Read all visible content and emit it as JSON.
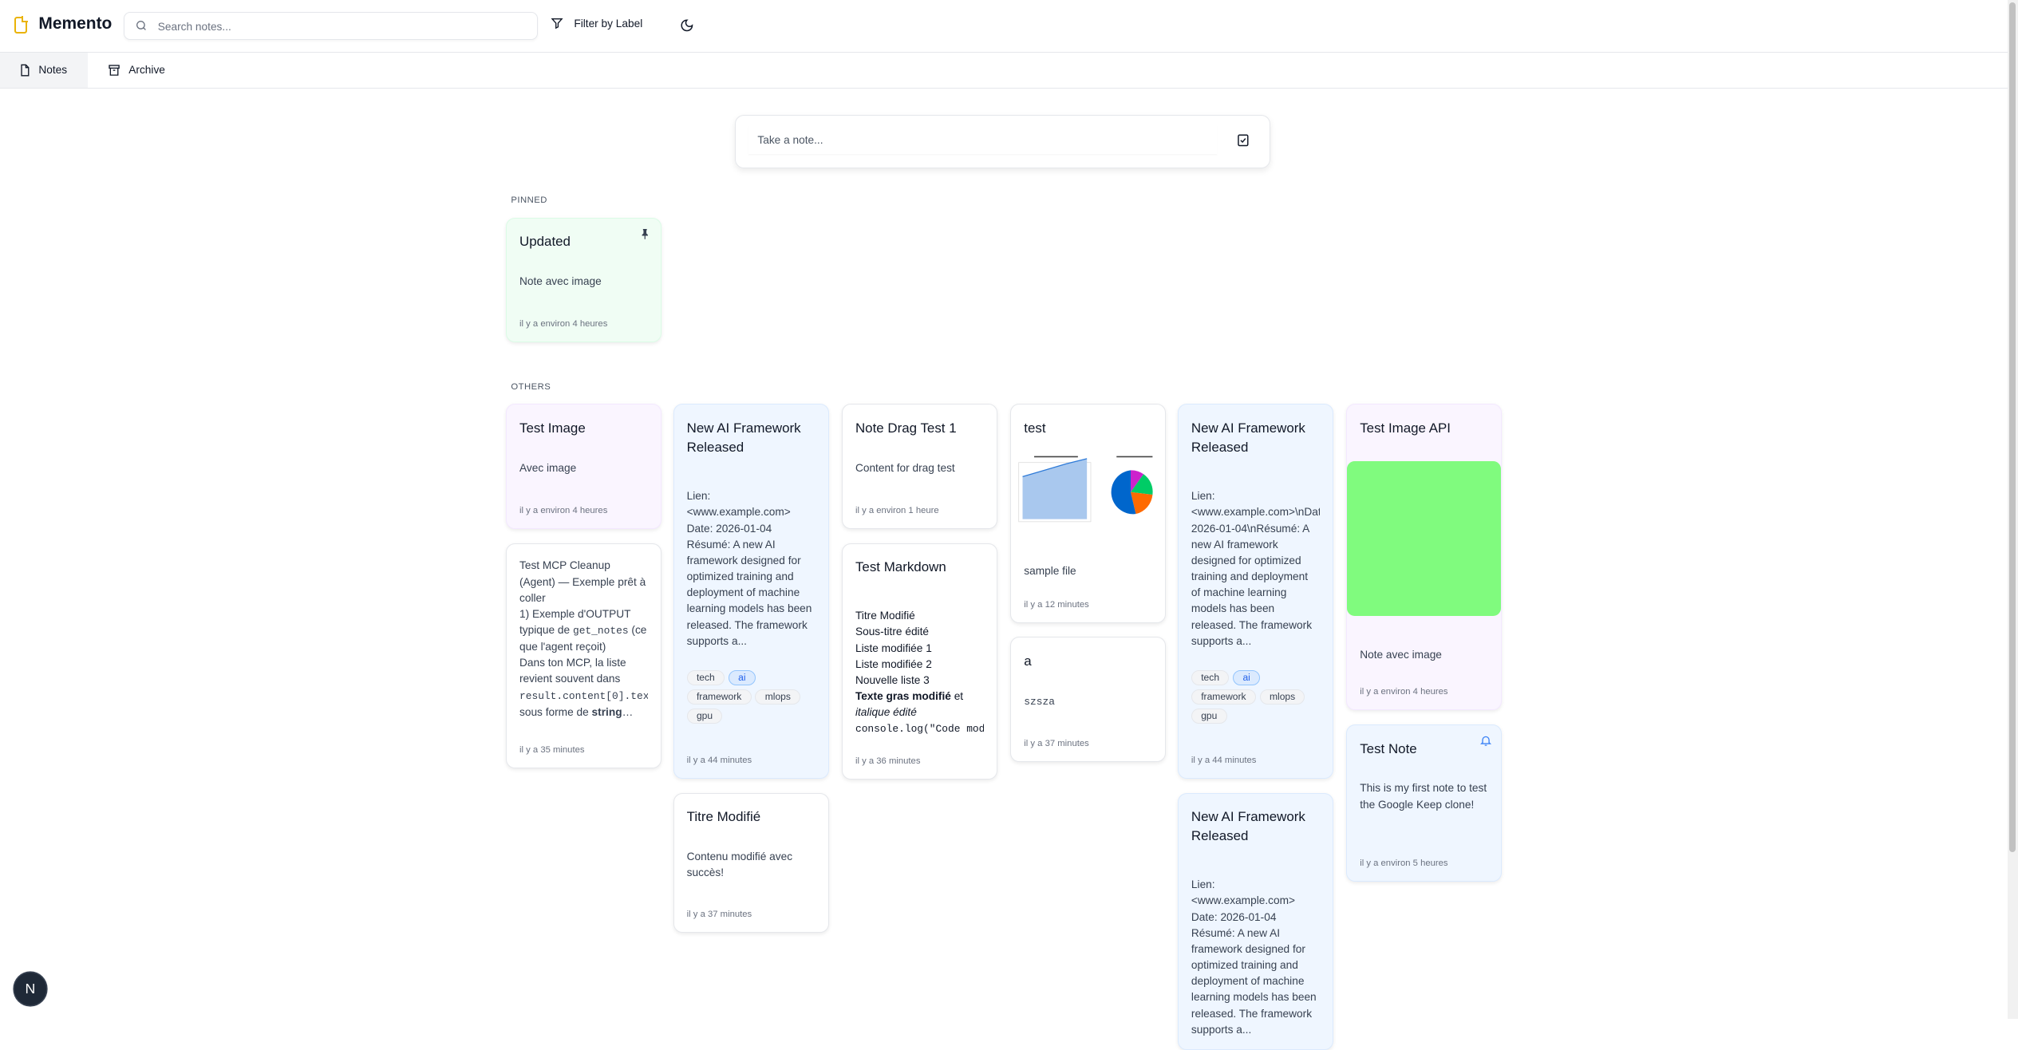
{
  "app": {
    "title": "Memento",
    "brand_color": "#eab308"
  },
  "header": {
    "search_placeholder": "Search notes...",
    "filter_label": "Filter by Label",
    "theme_icon": "moon-icon"
  },
  "tabs": [
    {
      "label": "Notes",
      "icon": "file-icon",
      "active": true
    },
    {
      "label": "Archive",
      "icon": "archive-icon",
      "active": false
    }
  ],
  "composer": {
    "placeholder": "Take a note...",
    "icon": "checkbox-icon"
  },
  "sections": {
    "pinned": "PINNED",
    "others": "OTHERS"
  },
  "pinned": [
    {
      "id": "updated",
      "color": "green",
      "title": "Updated",
      "pinned": true,
      "body": [
        [
          {
            "text": "Note avec image"
          }
        ]
      ],
      "timestamp": "il y a environ 4 heures"
    }
  ],
  "columns": [
    [
      {
        "id": "test-image",
        "color": "purple",
        "title": "Test Image",
        "body": [
          [
            {
              "text": "Avec image"
            }
          ]
        ],
        "timestamp": "il y a environ 4 heures"
      },
      {
        "id": "mcp",
        "color": "white",
        "title": "",
        "body": [
          [
            {
              "text": "Test MCP Cleanup (Agent) — Exemple prêt à coller"
            }
          ],
          [
            {
              "text": "1) Exemple d'OUTPUT typique de "
            },
            {
              "text": "get_notes",
              "style": "code"
            },
            {
              "text": " (ce que l'agent reçoit)"
            }
          ],
          [
            {
              "text": "Dans ton MCP, la liste revient souvent dans "
            },
            {
              "text": "result.content[0].tex",
              "style": "code"
            },
            {
              "text": " sous forme de "
            },
            {
              "text": "string",
              "style": "bold"
            },
            {
              "text": "…"
            }
          ]
        ],
        "timestamp": "il y a 35 minutes"
      }
    ],
    [
      {
        "id": "ai1",
        "color": "blue",
        "title": "New AI Framework Released",
        "body": [
          [
            {
              "text": "Lien:"
            }
          ],
          [
            {
              "text": "<www.example.com>"
            }
          ],
          [
            {
              "text": "Date: 2026-01-04"
            }
          ],
          [
            {
              "text": "Résumé: A new AI framework designed for optimized training and deployment of machine learning models has been released. The framework supports a..."
            }
          ]
        ],
        "tags": [
          "tech",
          "ai",
          "framework",
          "mlops",
          "gpu"
        ],
        "timestamp": "il y a 44 minutes"
      },
      {
        "id": "titre",
        "color": "white",
        "title": "Titre Modifié",
        "body": [
          [
            {
              "text": "Contenu modifié avec succès!"
            }
          ]
        ],
        "timestamp": "il y a 37 minutes"
      }
    ],
    [
      {
        "id": "drag",
        "color": "white",
        "title": "Note Drag Test 1",
        "body": [
          [
            {
              "text": "Content for drag test"
            }
          ]
        ],
        "timestamp": "il y a environ 1 heure"
      },
      {
        "id": "md",
        "color": "white",
        "title": "Test Markdown",
        "body": [
          [
            {
              "text": "Titre Modifié"
            }
          ],
          [
            {
              "text": "Sous-titre édité"
            }
          ],
          [
            {
              "text": "Liste modifiée 1"
            }
          ],
          [
            {
              "text": "Liste modifiée 2"
            }
          ],
          [
            {
              "text": "Nouvelle liste 3"
            }
          ],
          [
            {
              "text": "Texte gras modifié",
              "style": "bold"
            },
            {
              "text": " et"
            }
          ],
          [
            {
              "text": "italique édité",
              "style": "italic"
            }
          ],
          [
            {
              "text": "console.log(\"Code mod",
              "style": "code"
            }
          ]
        ],
        "timestamp": "il y a 36 minutes"
      }
    ],
    [
      {
        "id": "test",
        "color": "white",
        "title": "test",
        "image": "chart-thumbnail",
        "body": [
          [
            {
              "text": "sample file"
            }
          ]
        ],
        "timestamp": "il y a 12 minutes"
      },
      {
        "id": "a",
        "color": "white",
        "title": "a",
        "body": [
          [
            {
              "text": "szsza",
              "style": "code"
            }
          ]
        ],
        "timestamp": "il y a 37 minutes"
      }
    ],
    [
      {
        "id": "ai2",
        "color": "blue",
        "title": "New AI Framework Released",
        "body": [
          [
            {
              "text": "Lien: <www.example.com>\\nDate: 2026-01-04\\nRésumé: A new AI framework designed for optimized training and deployment of machine learning models has been released. The framework supports a..."
            }
          ]
        ],
        "tags": [
          "tech",
          "ai",
          "framework",
          "mlops",
          "gpu"
        ],
        "timestamp": "il y a 44 minutes"
      },
      {
        "id": "ai3",
        "color": "blue",
        "title": "New AI Framework Released",
        "body": [
          [
            {
              "text": "Lien:"
            }
          ],
          [
            {
              "text": "<www.example.com>"
            }
          ],
          [
            {
              "text": "Date: 2026-01-04"
            }
          ],
          [
            {
              "text": "Résumé: A new AI framework designed for optimized training and deployment of machine learning models has been released. The framework supports a..."
            }
          ]
        ],
        "timestamp": ""
      }
    ],
    [
      {
        "id": "imgapi",
        "color": "purple",
        "title": "Test Image API",
        "image": "green-image",
        "image_color": "#80fb7e",
        "body": [
          [
            {
              "text": "Note avec image"
            }
          ]
        ],
        "timestamp": "il y a environ 4 heures"
      },
      {
        "id": "testnote",
        "color": "blue",
        "title": "Test Note",
        "reminder": true,
        "body": [
          [
            {
              "text": "This is my first note to test the Google Keep clone!"
            }
          ]
        ],
        "timestamp": "il y a environ 5 heures"
      }
    ]
  ],
  "dev_badge": "N"
}
